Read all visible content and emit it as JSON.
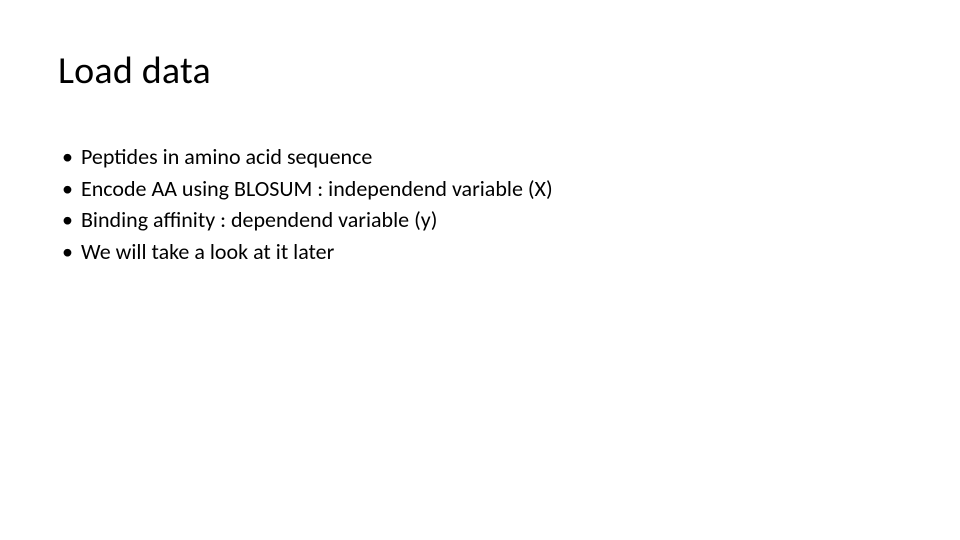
{
  "slide": {
    "title": "Load data",
    "bullets": [
      {
        "marker": "•",
        "text": "Peptides in amino acid sequence"
      },
      {
        "marker": "•",
        "text": "Encode AA using BLOSUM : independend variable (X)"
      },
      {
        "marker": "•",
        "text": "Binding affinity : dependend variable (y)"
      },
      {
        "marker": "•",
        "text": "We will take a look at it later"
      }
    ],
    "colors": {
      "background": "#ffffff",
      "text": "#000000"
    },
    "typography": {
      "title_fontsize": 38,
      "title_weight": 400,
      "body_fontsize": 22,
      "font_family": "Calibri"
    }
  }
}
